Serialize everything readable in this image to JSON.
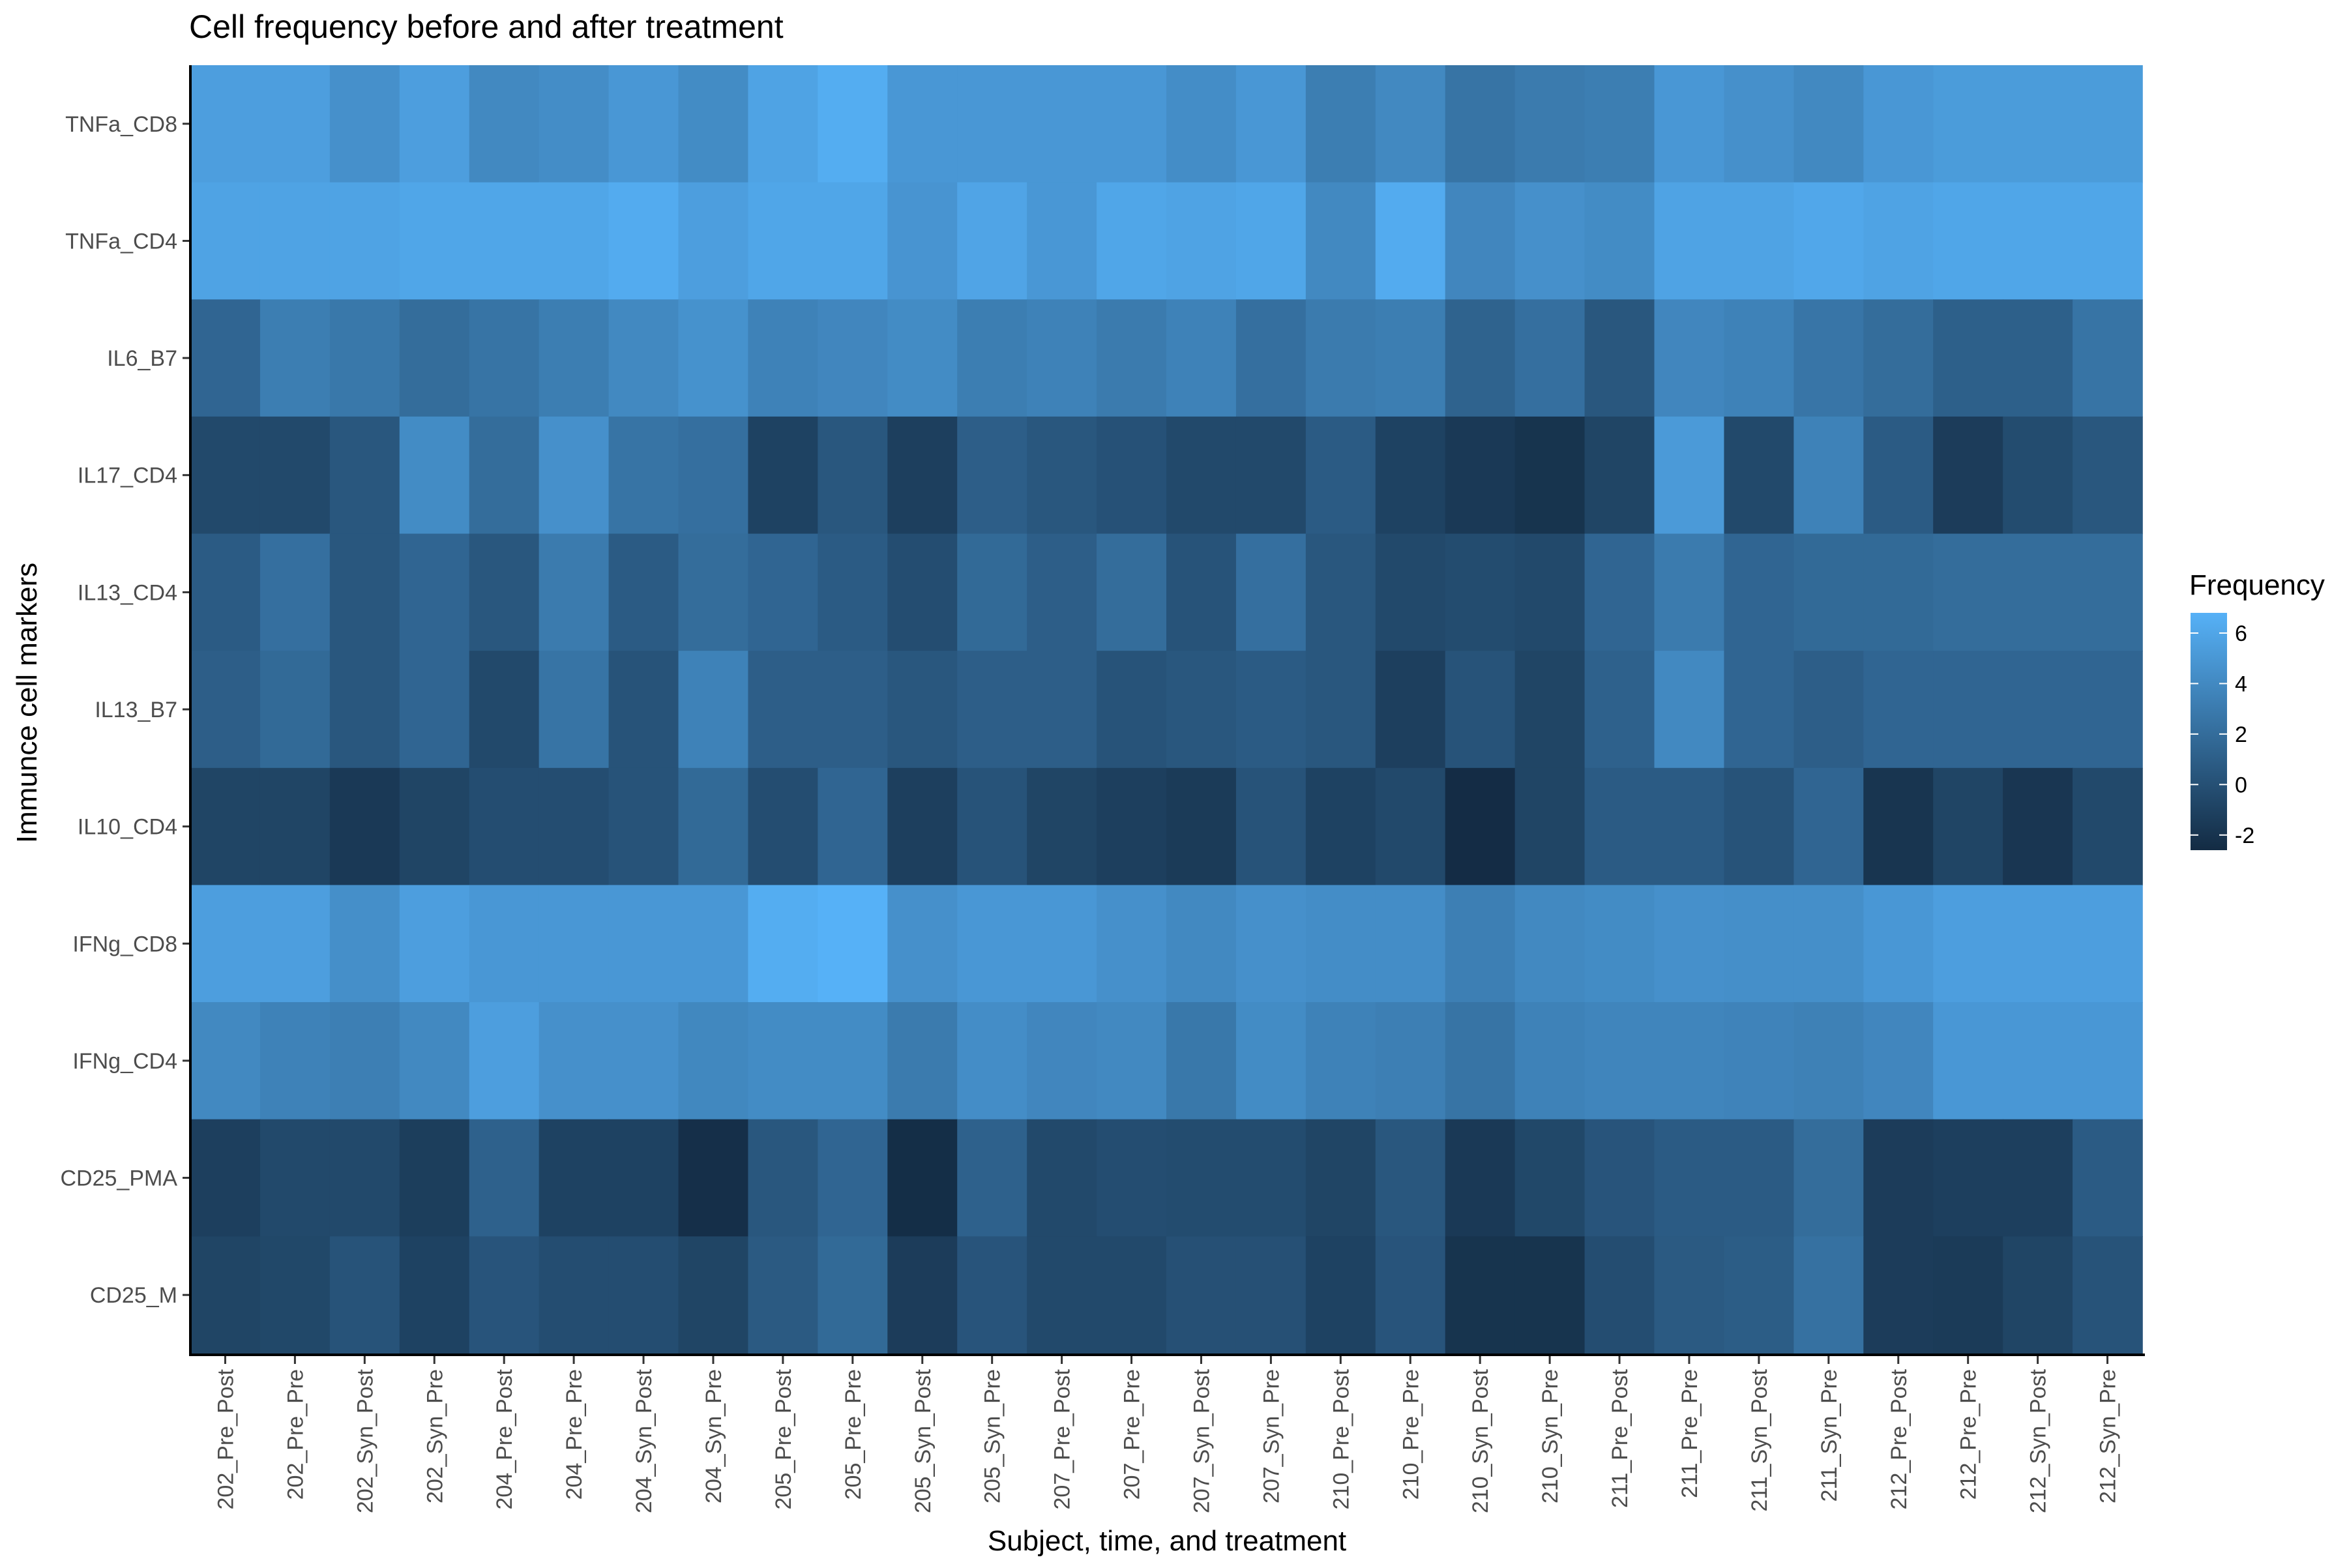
{
  "chart_data": {
    "type": "heatmap",
    "title": "Cell frequency before and after treatment",
    "xlabel": "Subject, time, and treatment",
    "ylabel": "Immunce cell markers",
    "x": [
      "202_Pre_Post",
      "202_Pre_Pre",
      "202_Syn_Post",
      "202_Syn_Pre",
      "204_Pre_Post",
      "204_Pre_Pre",
      "204_Syn_Post",
      "204_Syn_Pre",
      "205_Pre_Post",
      "205_Pre_Pre",
      "205_Syn_Post",
      "205_Syn_Pre",
      "207_Pre_Post",
      "207_Pre_Pre",
      "207_Syn_Post",
      "207_Syn_Pre",
      "210_Pre_Post",
      "210_Pre_Pre",
      "210_Syn_Post",
      "210_Syn_Pre",
      "211_Pre_Post",
      "211_Pre_Pre",
      "211_Syn_Post",
      "211_Syn_Pre",
      "212_Pre_Post",
      "212_Pre_Pre",
      "212_Syn_Post",
      "212_Syn_Pre"
    ],
    "y": [
      "TNFa_CD8",
      "TNFa_CD4",
      "IL6_B7",
      "IL17_CD4",
      "IL13_CD4",
      "IL13_B7",
      "IL10_CD4",
      "IFNg_CD8",
      "IFNg_CD4",
      "CD25_PMA",
      "CD25_M"
    ],
    "values": [
      [
        5.5,
        5.5,
        4.5,
        5.5,
        4.0,
        4.3,
        5.0,
        4.2,
        5.8,
        6.5,
        5.0,
        5.0,
        5.0,
        5.0,
        4.3,
        5.0,
        3.2,
        4.0,
        2.5,
        3.0,
        3.2,
        5.0,
        4.5,
        4.0,
        5.0,
        5.3,
        5.3,
        5.3
      ],
      [
        5.8,
        5.8,
        5.8,
        6.0,
        6.0,
        6.0,
        6.4,
        5.5,
        6.0,
        6.0,
        4.8,
        5.9,
        5.0,
        6.0,
        5.8,
        6.0,
        4.0,
        6.4,
        3.8,
        4.5,
        4.2,
        5.8,
        5.8,
        6.1,
        5.8,
        6.0,
        6.0,
        6.0
      ],
      [
        1.5,
        3.2,
        2.8,
        2.0,
        2.5,
        3.2,
        4.0,
        4.6,
        3.5,
        3.8,
        4.2,
        3.2,
        3.5,
        3.0,
        3.5,
        2.2,
        3.0,
        3.2,
        1.3,
        2.2,
        0.5,
        3.8,
        3.5,
        2.6,
        2.0,
        1.1,
        1.1,
        2.5
      ],
      [
        -0.5,
        -0.5,
        0.5,
        4.2,
        2.0,
        4.5,
        2.5,
        2.2,
        -1.0,
        0.5,
        -1.2,
        1.0,
        0.5,
        0.1,
        -0.5,
        -0.5,
        0.8,
        -1.0,
        -1.6,
        -2.0,
        -0.8,
        5.2,
        -0.5,
        3.5,
        0.8,
        -1.4,
        -0.3,
        0.5
      ],
      [
        0.8,
        2.2,
        0.5,
        1.5,
        0.5,
        3.0,
        0.8,
        2.0,
        1.5,
        0.8,
        -0.2,
        1.8,
        1.0,
        2.0,
        0.2,
        2.2,
        0.5,
        -0.5,
        -0.3,
        -0.5,
        1.5,
        3.0,
        1.5,
        1.8,
        1.8,
        2.0,
        2.0,
        2.0
      ],
      [
        1.0,
        1.8,
        0.5,
        1.5,
        -0.5,
        2.5,
        0.2,
        3.5,
        1.0,
        1.0,
        0.5,
        1.0,
        1.0,
        0.2,
        0.5,
        0.8,
        0.5,
        -1.2,
        0.2,
        -0.8,
        1.2,
        4.0,
        1.5,
        1.0,
        1.5,
        1.5,
        1.5,
        1.5
      ],
      [
        -0.8,
        -0.8,
        -1.6,
        -0.8,
        -0.2,
        -0.2,
        0.2,
        1.8,
        -0.2,
        1.5,
        -1.2,
        0.2,
        -0.8,
        -1.2,
        -1.5,
        0.2,
        -1.0,
        -0.5,
        -2.5,
        -0.8,
        0.8,
        0.8,
        0.2,
        1.5,
        -1.9,
        -0.8,
        -1.8,
        -0.5
      ],
      [
        5.5,
        5.5,
        4.4,
        5.5,
        5.0,
        5.0,
        5.0,
        5.0,
        6.5,
        6.8,
        4.5,
        5.0,
        5.0,
        4.5,
        4.0,
        4.5,
        4.3,
        4.3,
        3.3,
        4.0,
        4.2,
        4.5,
        4.4,
        4.4,
        5.0,
        5.5,
        5.5,
        5.5
      ],
      [
        4.0,
        3.5,
        3.3,
        4.0,
        5.5,
        4.5,
        4.5,
        3.9,
        4.2,
        4.2,
        3.0,
        4.3,
        3.8,
        4.0,
        2.8,
        4.2,
        3.5,
        3.3,
        2.5,
        3.5,
        3.7,
        3.7,
        3.6,
        3.4,
        3.8,
        5.0,
        5.0,
        5.0
      ],
      [
        -1.2,
        -0.5,
        -0.5,
        -1.3,
        1.2,
        -1.0,
        -1.0,
        -2.3,
        0.5,
        1.5,
        -2.4,
        1.2,
        -0.5,
        -0.2,
        -0.3,
        -0.3,
        -0.8,
        0.5,
        -1.6,
        -0.6,
        0.3,
        0.8,
        0.8,
        2.0,
        -1.4,
        -1.2,
        -1.2,
        0.8
      ],
      [
        -0.8,
        -0.6,
        0.2,
        -1.0,
        0.3,
        -0.2,
        -0.2,
        -0.8,
        0.7,
        1.8,
        -1.4,
        0.3,
        -0.5,
        -0.5,
        0.0,
        0.0,
        -1.0,
        0.3,
        -2.0,
        -2.0,
        -0.2,
        0.7,
        0.9,
        2.3,
        -1.4,
        -1.5,
        -0.8,
        0.2
      ]
    ],
    "colorscale": {
      "low": "#132B43",
      "high": "#56B1F7",
      "min": -2.6,
      "max": 6.8
    },
    "legend": {
      "title": "Frequency",
      "ticks": [
        6,
        4,
        2,
        0,
        -2
      ],
      "placement": "right"
    },
    "grid": false
  }
}
